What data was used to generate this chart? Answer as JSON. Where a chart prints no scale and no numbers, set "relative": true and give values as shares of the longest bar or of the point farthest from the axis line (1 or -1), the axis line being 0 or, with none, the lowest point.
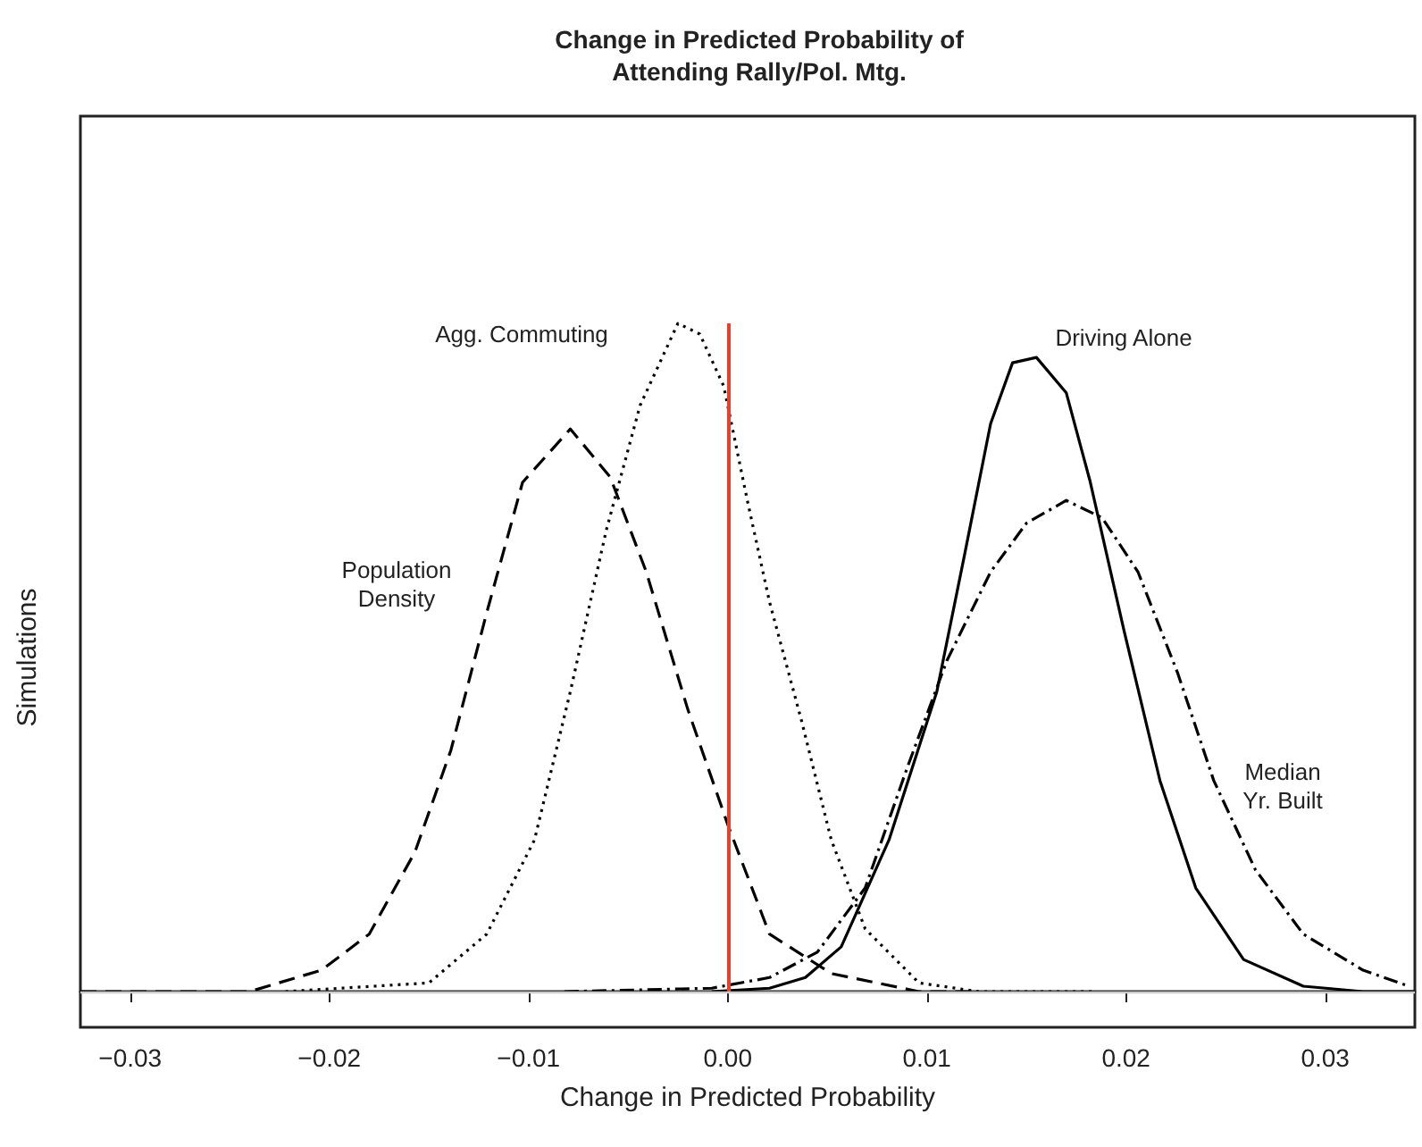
{
  "chart_data": {
    "type": "line",
    "relative": true,
    "title": "Change in Predicted Probability of\nAttending Rally/Pol. Mtg.",
    "xlabel": "Change in Predicted Probability",
    "ylabel": "Simulations",
    "xlim": [
      -0.0325,
      0.0345
    ],
    "xticks": [
      {
        "value": -0.03,
        "label": "−0.03"
      },
      {
        "value": -0.02,
        "label": "−0.02"
      },
      {
        "value": -0.01,
        "label": "−0.01"
      },
      {
        "value": 0,
        "label": "0.00"
      },
      {
        "value": 0.01,
        "label": "0.01"
      },
      {
        "value": 0.02,
        "label": "0.02"
      },
      {
        "value": 0.03,
        "label": "0.03"
      }
    ],
    "marker": "none",
    "series": [
      {
        "color": "#000000",
        "line_style": "dashed",
        "x": [
          -0.0325,
          -0.024,
          -0.0204,
          -0.018,
          -0.0157,
          -0.0139,
          -0.0121,
          -0.0103,
          -0.0079,
          -0.0059,
          -0.0041,
          -0.002,
          0.0,
          0.0021,
          0.0052,
          0.0096,
          0.0126
        ],
        "values": [
          0,
          0,
          0.032,
          0.086,
          0.209,
          0.361,
          0.567,
          0.762,
          0.842,
          0.77,
          0.629,
          0.422,
          0.25,
          0.086,
          0.027,
          0,
          0
        ]
      },
      {
        "color": "#000000",
        "line_style": "dotted",
        "x": [
          -0.0222,
          -0.015,
          -0.0121,
          -0.0097,
          -0.0079,
          -0.0061,
          -0.0044,
          -0.0025,
          -0.0014,
          -0.0002,
          0.001,
          0.0021,
          0.0037,
          0.0052,
          0.0069,
          0.0096,
          0.0126,
          0.0185
        ],
        "values": [
          0,
          0.013,
          0.086,
          0.227,
          0.449,
          0.69,
          0.877,
          1,
          0.984,
          0.906,
          0.733,
          0.583,
          0.406,
          0.227,
          0.094,
          0.013,
          0,
          0
        ]
      },
      {
        "color": "#000000",
        "line_style": "solid",
        "x": [
          -0.0008,
          0.0021,
          0.0039,
          0.0057,
          0.0081,
          0.0105,
          0.0119,
          0.0132,
          0.0143,
          0.0155,
          0.017,
          0.0182,
          0.0199,
          0.0217,
          0.0235,
          0.0259,
          0.0289,
          0.0319,
          0.0345
        ],
        "values": [
          0,
          0.005,
          0.021,
          0.067,
          0.227,
          0.449,
          0.655,
          0.85,
          0.941,
          0.949,
          0.896,
          0.763,
          0.54,
          0.316,
          0.155,
          0.048,
          0.008,
          0,
          0
        ]
      },
      {
        "color": "#000000",
        "line_style": "dashdot",
        "x": [
          -0.0082,
          -0.0008,
          0.0021,
          0.0045,
          0.0069,
          0.009,
          0.011,
          0.0132,
          0.015,
          0.017,
          0.0188,
          0.0206,
          0.0226,
          0.0244,
          0.0265,
          0.0289,
          0.0319,
          0.0342
        ],
        "values": [
          0,
          0.005,
          0.021,
          0.059,
          0.155,
          0.334,
          0.495,
          0.628,
          0.701,
          0.735,
          0.709,
          0.628,
          0.476,
          0.316,
          0.182,
          0.086,
          0.032,
          0.008
        ]
      }
    ],
    "ref_lines": [
      {
        "axis": "x",
        "value": 0,
        "color": "#e8402a"
      },
      {
        "axis": "y",
        "value": 0,
        "color": "#cccccc"
      }
    ],
    "annotations": [
      "Agg. Commuting",
      "Population\nDensity",
      "Driving Alone",
      "Median\nYr. Built"
    ]
  }
}
